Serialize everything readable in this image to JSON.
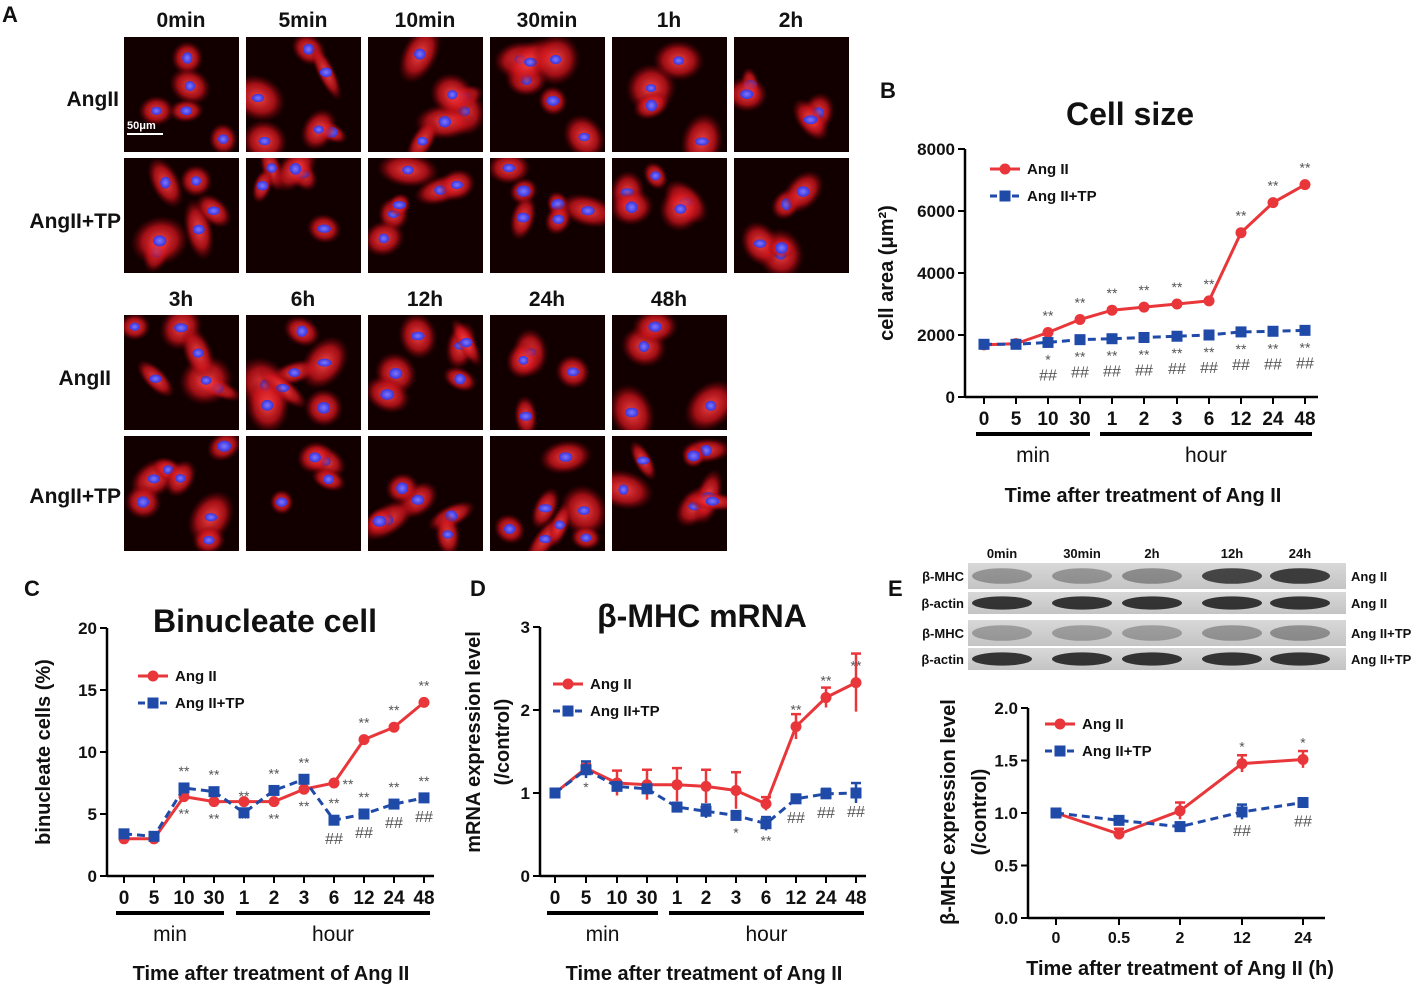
{
  "colors": {
    "angii": "#e8363a",
    "angiitp": "#1f4aa8",
    "text": "#111111",
    "axis": "#000000",
    "mark": "#555555"
  },
  "panel_a": {
    "letter": "A",
    "top_times": [
      "0min",
      "5min",
      "10min",
      "30min",
      "1h",
      "2h"
    ],
    "bottom_times": [
      "3h",
      "6h",
      "12h",
      "24h",
      "48h"
    ],
    "row_labels": [
      "AngII",
      "AngII+TP",
      "AngII",
      "AngII+TP"
    ],
    "scale_bar": "50μm"
  },
  "panel_e_blot": {
    "letter": "E",
    "lanes": [
      "0min",
      "30min",
      "2h",
      "12h",
      "24h"
    ],
    "rows": [
      {
        "protein": "β-MHC",
        "group": "Ang II"
      },
      {
        "protein": "β-actin",
        "group": "Ang II"
      },
      {
        "protein": "β-MHC",
        "group": "Ang II+TP"
      },
      {
        "protein": "β-actin",
        "group": "Ang II+TP"
      }
    ]
  },
  "chart_data": [
    {
      "id": "B",
      "type": "line",
      "letter": "B",
      "title": "Cell size",
      "xlabel": "Time after treatment of Ang II",
      "ylabel": "cell area (μm²)",
      "categories": [
        "0",
        "5",
        "10",
        "30",
        "1",
        "2",
        "3",
        "6",
        "12",
        "24",
        "48"
      ],
      "groups": [
        {
          "label": "min",
          "from": 0,
          "to": 3
        },
        {
          "label": "hour",
          "from": 4,
          "to": 10
        }
      ],
      "ylim": [
        0,
        8000
      ],
      "yticks": [
        "0",
        "2000",
        "4000",
        "6000",
        "8000"
      ],
      "legend": "top-left",
      "series": [
        {
          "name": "Ang II",
          "values": [
            1680,
            1720,
            2080,
            2500,
            2800,
            2900,
            3000,
            3100,
            5300,
            6270,
            6850
          ],
          "above": [
            "",
            "",
            "**",
            "**",
            "**",
            "**",
            "**",
            "**",
            "**",
            "**",
            "**"
          ]
        },
        {
          "name": "Ang II+TP",
          "values": [
            1700,
            1700,
            1760,
            1850,
            1880,
            1920,
            1960,
            2000,
            2100,
            2120,
            2150
          ],
          "below": [
            "",
            "",
            "*",
            "**",
            "**",
            "**",
            "**",
            "**",
            "**",
            "**",
            "**"
          ],
          "below2": [
            "",
            "",
            "##",
            "##",
            "##",
            "##",
            "##",
            "##",
            "##",
            "##",
            "##"
          ]
        }
      ]
    },
    {
      "id": "C",
      "type": "line",
      "letter": "C",
      "title": "Binucleate cell",
      "xlabel": "Time after treatment of Ang II",
      "ylabel": "binucleate cells (%)",
      "categories": [
        "0",
        "5",
        "10",
        "30",
        "1",
        "2",
        "3",
        "6",
        "12",
        "24",
        "48"
      ],
      "groups": [
        {
          "label": "min",
          "from": 0,
          "to": 3
        },
        {
          "label": "hour",
          "from": 4,
          "to": 10
        }
      ],
      "ylim": [
        0,
        20
      ],
      "yticks": [
        "0",
        "5",
        "10",
        "15",
        "20"
      ],
      "legend": "top-left",
      "series": [
        {
          "name": "Ang II",
          "values": [
            3.0,
            3.0,
            6.4,
            6.0,
            6.0,
            6.0,
            7.0,
            7.5,
            11.0,
            12.0,
            14.0
          ],
          "above": [
            "",
            "",
            "",
            "",
            "",
            "",
            "",
            "",
            "**",
            "**",
            "**"
          ],
          "below": [
            "",
            "",
            "**",
            "**",
            "**",
            "**",
            "**",
            "",
            "",
            "",
            ""
          ],
          "right": [
            "",
            "",
            "",
            "",
            "",
            "",
            "",
            "**",
            "",
            "",
            ""
          ]
        },
        {
          "name": "Ang II+TP",
          "values": [
            3.4,
            3.2,
            7.1,
            6.8,
            5.1,
            6.9,
            7.8,
            4.5,
            5.0,
            5.8,
            6.3
          ],
          "above": [
            "",
            "",
            "**",
            "**",
            "**",
            "**",
            "**",
            "**",
            "**",
            "**",
            "**"
          ],
          "below2": [
            "",
            "",
            "",
            "",
            "",
            "",
            "",
            "##",
            "##",
            "##",
            "##"
          ]
        }
      ]
    },
    {
      "id": "D",
      "type": "line",
      "letter": "D",
      "title": "β-MHC mRNA",
      "xlabel": "Time after treatment of Ang II",
      "ylabel": "mRNA expression level",
      "ylabel2": "(/control)",
      "categories": [
        "0",
        "5",
        "10",
        "30",
        "1",
        "2",
        "3",
        "6",
        "12",
        "24",
        "48"
      ],
      "groups": [
        {
          "label": "min",
          "from": 0,
          "to": 3
        },
        {
          "label": "hour",
          "from": 4,
          "to": 10
        }
      ],
      "ylim": [
        0,
        3
      ],
      "yticks": [
        "0",
        "1",
        "2",
        "3"
      ],
      "legend": "top-left",
      "series": [
        {
          "name": "Ang II",
          "values": [
            1.0,
            1.3,
            1.12,
            1.1,
            1.1,
            1.08,
            1.03,
            0.87,
            1.8,
            2.15,
            2.33
          ],
          "err": [
            0,
            0.05,
            0.15,
            0.18,
            0.2,
            0.2,
            0.22,
            0.08,
            0.15,
            0.12,
            0.35
          ],
          "above": [
            "",
            "",
            "",
            "",
            "",
            "",
            "",
            "",
            "**",
            "**",
            "**"
          ]
        },
        {
          "name": "Ang II+TP",
          "values": [
            1.0,
            1.28,
            1.08,
            1.05,
            0.83,
            0.78,
            0.73,
            0.63,
            0.93,
            0.99,
            1.0
          ],
          "err": [
            0,
            0.1,
            0.04,
            0.04,
            0.05,
            0.08,
            0.05,
            0.08,
            0.05,
            0.06,
            0.12
          ],
          "below": [
            "",
            "*",
            "",
            "",
            "",
            "",
            "*",
            "**",
            "",
            "",
            ""
          ],
          "below2": [
            "",
            "",
            "",
            "",
            "",
            "",
            "",
            "",
            "##",
            "##",
            "##"
          ]
        }
      ]
    },
    {
      "id": "E",
      "type": "line",
      "title": "",
      "xlabel": "Time after treatment of Ang II (h)",
      "ylabel": "β-MHC  expression level",
      "ylabel2": "(/control)",
      "categories": [
        "0",
        "0.5",
        "2",
        "12",
        "24"
      ],
      "ylim": [
        0,
        2.0
      ],
      "yticks": [
        "0.0",
        "0.5",
        "1.0",
        "1.5",
        "2.0"
      ],
      "legend": "top-left",
      "series": [
        {
          "name": "Ang II",
          "values": [
            1.0,
            0.8,
            1.02,
            1.47,
            1.51
          ],
          "err": [
            0,
            0.05,
            0.08,
            0.08,
            0.08
          ],
          "above": [
            "",
            "",
            "",
            "*",
            "*"
          ]
        },
        {
          "name": "Ang II+TP",
          "values": [
            1.0,
            0.93,
            0.87,
            1.01,
            1.1
          ],
          "err": [
            0,
            0.03,
            0.04,
            0.07,
            0.04
          ],
          "below2": [
            "",
            "",
            "",
            "##",
            "##"
          ]
        }
      ]
    }
  ]
}
